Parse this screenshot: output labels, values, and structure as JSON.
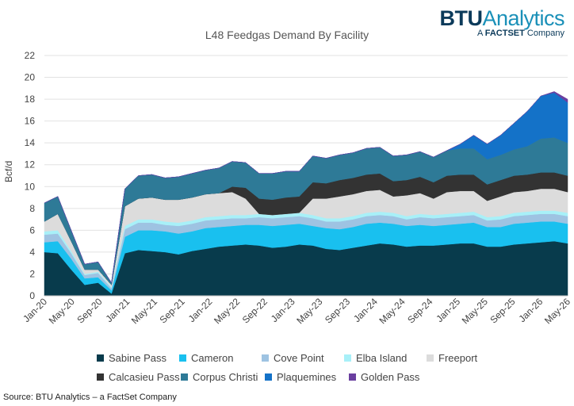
{
  "logo": {
    "brand": "BTU",
    "product": "Analytics",
    "tagline_prefix": "A",
    "tagline_brand": "FACTSET",
    "tagline_suffix": "Company"
  },
  "source": "Source: BTU Analytics – a FactSet Company",
  "chart_data": {
    "type": "area",
    "title": "L48 Feedgas Demand By Facility",
    "ylabel": "Bcf/d",
    "xlabel": "",
    "ylim": [
      0,
      22
    ],
    "yticks": [
      0,
      2,
      4,
      6,
      8,
      10,
      12,
      14,
      16,
      18,
      20,
      22
    ],
    "xticks": [
      "Jan-20",
      "May-20",
      "Sep-20",
      "Jan-21",
      "May-21",
      "Sep-21",
      "Jan-22",
      "May-22",
      "Sep-22",
      "Jan-23",
      "May-23",
      "Sep-23",
      "Jan-24",
      "May-24",
      "Sep-24",
      "Jan-25",
      "May-25",
      "Sep-25",
      "Jan-26",
      "May-26"
    ],
    "grid": "horizontal",
    "legend_position": "bottom",
    "stacked": true,
    "x": [
      "Jan-20",
      "Mar-20",
      "May-20",
      "Jul-20",
      "Aug-20",
      "Sep-20",
      "Nov-20",
      "Jan-21",
      "Mar-21",
      "May-21",
      "Jul-21",
      "Sep-21",
      "Nov-21",
      "Jan-22",
      "Mar-22",
      "May-22",
      "Jul-22",
      "Sep-22",
      "Nov-22",
      "Jan-23",
      "Mar-23",
      "May-23",
      "Jul-23",
      "Sep-23",
      "Nov-23",
      "Jan-24",
      "Mar-24",
      "May-24",
      "Jul-24",
      "Sep-24",
      "Nov-24",
      "Jan-25",
      "Mar-25",
      "May-25",
      "Jul-25",
      "Sep-25",
      "Nov-25",
      "Jan-26",
      "Mar-26",
      "May-26"
    ],
    "series": [
      {
        "name": "Sabine Pass",
        "color": "#083b4c",
        "values": [
          4.0,
          3.9,
          2.4,
          1.0,
          1.2,
          0.2,
          3.9,
          4.2,
          4.1,
          4.0,
          3.8,
          4.1,
          4.3,
          4.5,
          4.6,
          4.7,
          4.6,
          4.4,
          4.5,
          4.7,
          4.6,
          4.3,
          4.2,
          4.4,
          4.6,
          4.8,
          4.7,
          4.5,
          4.6,
          4.6,
          4.7,
          4.8,
          4.8,
          4.5,
          4.5,
          4.7,
          4.8,
          4.9,
          5.0,
          4.8
        ]
      },
      {
        "name": "Cameron",
        "color": "#19c0ef",
        "values": [
          0.9,
          1.1,
          1.0,
          0.6,
          0.5,
          0.3,
          1.5,
          1.8,
          1.9,
          1.9,
          1.9,
          1.8,
          1.9,
          1.8,
          1.8,
          1.8,
          1.9,
          2.0,
          2.0,
          1.9,
          1.8,
          1.9,
          1.9,
          1.9,
          2.0,
          1.9,
          1.9,
          1.9,
          1.9,
          1.8,
          1.8,
          1.8,
          1.9,
          1.8,
          1.8,
          1.9,
          1.9,
          1.9,
          1.8,
          1.8
        ]
      },
      {
        "name": "Cove Point",
        "color": "#9ec3e2",
        "values": [
          0.7,
          0.7,
          0.5,
          0.3,
          0.4,
          0.2,
          0.7,
          0.7,
          0.7,
          0.6,
          0.7,
          0.7,
          0.7,
          0.7,
          0.7,
          0.6,
          0.7,
          0.7,
          0.7,
          0.7,
          0.7,
          0.6,
          0.7,
          0.7,
          0.7,
          0.7,
          0.7,
          0.6,
          0.7,
          0.7,
          0.7,
          0.7,
          0.7,
          0.6,
          0.7,
          0.7,
          0.7,
          0.7,
          0.7,
          0.7
        ]
      },
      {
        "name": "Elba Island",
        "color": "#a8f0f8",
        "values": [
          0.3,
          0.3,
          0.2,
          0.1,
          0.1,
          0.1,
          0.3,
          0.3,
          0.3,
          0.3,
          0.3,
          0.3,
          0.3,
          0.3,
          0.3,
          0.3,
          0.3,
          0.3,
          0.3,
          0.3,
          0.3,
          0.3,
          0.3,
          0.3,
          0.3,
          0.3,
          0.3,
          0.3,
          0.3,
          0.3,
          0.3,
          0.3,
          0.3,
          0.3,
          0.3,
          0.3,
          0.3,
          0.3,
          0.3,
          0.3
        ]
      },
      {
        "name": "Freeport",
        "color": "#dcdcdc",
        "values": [
          0.9,
          1.5,
          0.9,
          0.4,
          0.2,
          0.2,
          1.8,
          1.9,
          2.0,
          2.0,
          2.1,
          2.1,
          2.1,
          2.1,
          2.1,
          1.5,
          0.0,
          0.0,
          0.0,
          0.0,
          1.5,
          1.8,
          2.0,
          2.0,
          2.0,
          2.0,
          1.5,
          1.9,
          1.9,
          1.5,
          2.0,
          2.0,
          1.9,
          1.5,
          1.8,
          1.9,
          1.9,
          2.0,
          2.0,
          1.9
        ]
      },
      {
        "name": "Calcasieu Pass",
        "color": "#333333",
        "values": [
          0.0,
          0.0,
          0.0,
          0.0,
          0.0,
          0.0,
          0.0,
          0.0,
          0.0,
          0.0,
          0.0,
          0.0,
          0.0,
          0.0,
          0.5,
          1.0,
          1.4,
          1.4,
          1.5,
          1.5,
          1.5,
          1.4,
          1.5,
          1.5,
          1.5,
          1.5,
          1.4,
          1.4,
          1.5,
          1.5,
          1.5,
          1.5,
          1.5,
          1.5,
          1.5,
          1.5,
          1.5,
          1.5,
          1.5,
          1.5
        ]
      },
      {
        "name": "Corpus Christi",
        "color": "#2e7a97",
        "values": [
          1.7,
          1.6,
          1.0,
          0.5,
          0.7,
          0.2,
          1.6,
          2.1,
          2.1,
          2.0,
          2.1,
          2.2,
          2.2,
          2.3,
          2.3,
          2.3,
          2.3,
          2.4,
          2.4,
          2.3,
          2.4,
          2.3,
          2.3,
          2.3,
          2.4,
          2.4,
          2.3,
          2.3,
          2.3,
          2.3,
          2.3,
          2.4,
          2.4,
          2.3,
          2.3,
          2.4,
          2.6,
          3.1,
          3.2,
          3.0
        ]
      },
      {
        "name": "Plaquemines",
        "color": "#1472c8",
        "values": [
          0.0,
          0.0,
          0.0,
          0.0,
          0.0,
          0.0,
          0.0,
          0.0,
          0.0,
          0.0,
          0.0,
          0.0,
          0.0,
          0.0,
          0.0,
          0.0,
          0.0,
          0.0,
          0.0,
          0.0,
          0.0,
          0.0,
          0.0,
          0.0,
          0.0,
          0.0,
          0.0,
          0.0,
          0.0,
          0.0,
          0.0,
          0.4,
          1.2,
          1.4,
          1.8,
          2.4,
          3.2,
          3.9,
          4.1,
          3.7
        ]
      },
      {
        "name": "Golden Pass",
        "color": "#6a3fa0",
        "values": [
          0.0,
          0.0,
          0.0,
          0.0,
          0.0,
          0.0,
          0.0,
          0.0,
          0.0,
          0.0,
          0.0,
          0.0,
          0.0,
          0.0,
          0.0,
          0.0,
          0.0,
          0.0,
          0.0,
          0.0,
          0.0,
          0.0,
          0.0,
          0.0,
          0.0,
          0.0,
          0.0,
          0.0,
          0.0,
          0.0,
          0.0,
          0.0,
          0.0,
          0.0,
          0.0,
          0.0,
          0.0,
          0.0,
          0.1,
          0.3
        ]
      }
    ]
  }
}
